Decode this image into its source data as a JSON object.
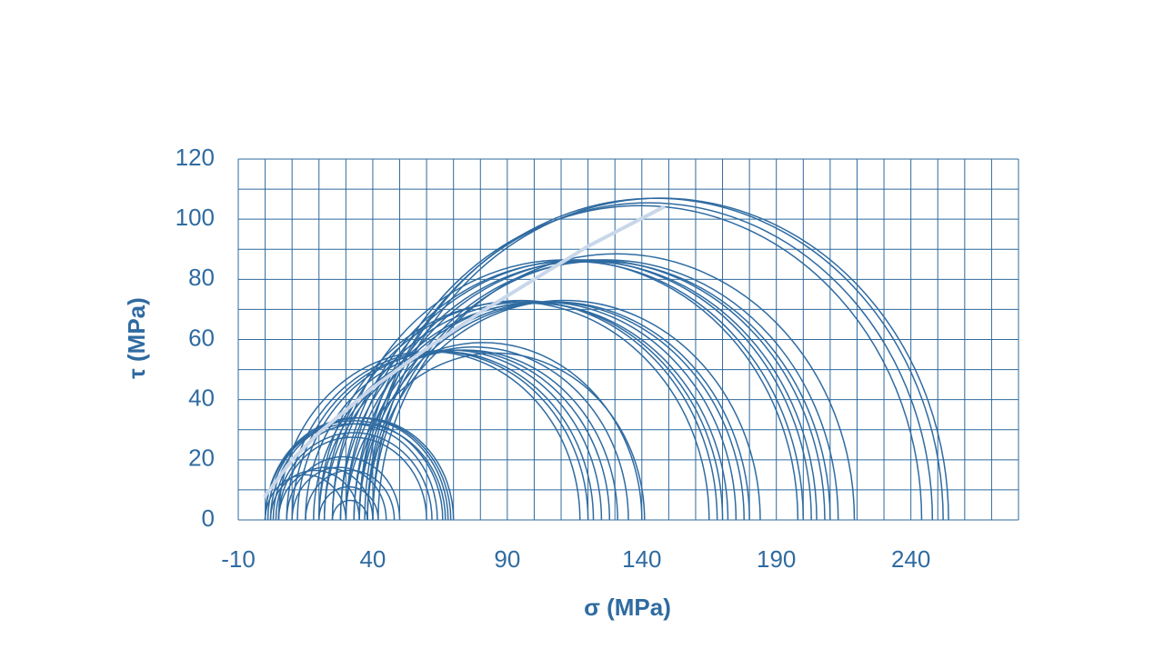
{
  "chart_data": {
    "type": "mohr",
    "x_label": "σ (MPa)",
    "y_label": "τ (MPa)",
    "xlim": [
      -10,
      280
    ],
    "xticks": [
      -10,
      40,
      90,
      140,
      190,
      240
    ],
    "ylim": [
      0,
      120
    ],
    "yticks": [
      0,
      20,
      40,
      60,
      80,
      100,
      120
    ],
    "xgrid": [
      -10,
      0,
      10,
      20,
      30,
      40,
      50,
      60,
      70,
      80,
      90,
      100,
      110,
      120,
      130,
      140,
      150,
      160,
      170,
      180,
      190,
      200,
      210,
      220,
      230,
      240,
      250,
      260,
      270,
      280
    ],
    "ygrid": [
      0,
      10,
      20,
      30,
      40,
      50,
      60,
      70,
      80,
      90,
      100,
      110,
      120
    ],
    "color": "#2f6ba1",
    "grid_color": "#2f6a9c",
    "sigma3": [
      0,
      0,
      1,
      2,
      0,
      3,
      4,
      5,
      0,
      2,
      5,
      10,
      15,
      8,
      20,
      25,
      5,
      8,
      10,
      12,
      15,
      18,
      20,
      22,
      30,
      20,
      22,
      25,
      28,
      30,
      33,
      35,
      38,
      25,
      28,
      30,
      33,
      35,
      38,
      40,
      42,
      35,
      37,
      38,
      40
    ],
    "sigma1": [
      66,
      68,
      69,
      70,
      64,
      67,
      62,
      60,
      30,
      35,
      40,
      45,
      48,
      50,
      42,
      38,
      117,
      120,
      122,
      125,
      128,
      131,
      135,
      140,
      141,
      165,
      168,
      170,
      172,
      175,
      178,
      180,
      184,
      198,
      200,
      203,
      205,
      208,
      210,
      213,
      219,
      244,
      248,
      252,
      254
    ],
    "envelope": {
      "color": "#c9d7ea",
      "x": [
        0,
        10,
        20,
        40,
        60,
        80,
        100,
        120,
        148
      ],
      "y": [
        8,
        20,
        29,
        44,
        57,
        69,
        80,
        91,
        104
      ]
    }
  }
}
